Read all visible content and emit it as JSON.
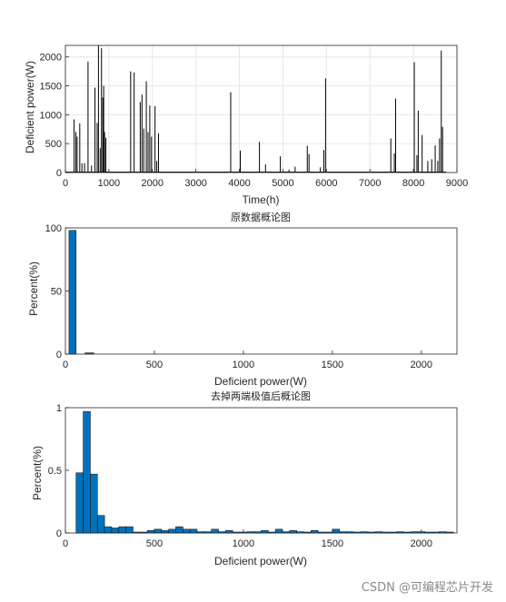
{
  "watermark": "CSDN @可编程芯片开发",
  "chart_data": [
    {
      "type": "line",
      "title": "",
      "xlabel": "Time(h)",
      "ylabel": "Deficient power(W)",
      "xlim": [
        0,
        9000
      ],
      "ylim": [
        0,
        2200
      ],
      "xticks": [
        0,
        1000,
        2000,
        3000,
        4000,
        5000,
        6000,
        7000,
        8000,
        9000
      ],
      "yticks": [
        0,
        500,
        1000,
        1500,
        2000
      ],
      "grid": true,
      "color": "#000000",
      "spikes": [
        {
          "x": 200,
          "y": 920
        },
        {
          "x": 240,
          "y": 700
        },
        {
          "x": 270,
          "y": 620
        },
        {
          "x": 330,
          "y": 850
        },
        {
          "x": 380,
          "y": 160
        },
        {
          "x": 440,
          "y": 160
        },
        {
          "x": 520,
          "y": 1920
        },
        {
          "x": 600,
          "y": 120
        },
        {
          "x": 680,
          "y": 1470
        },
        {
          "x": 730,
          "y": 860
        },
        {
          "x": 760,
          "y": 2200
        },
        {
          "x": 800,
          "y": 420
        },
        {
          "x": 830,
          "y": 2150
        },
        {
          "x": 860,
          "y": 1300
        },
        {
          "x": 880,
          "y": 1500
        },
        {
          "x": 900,
          "y": 700
        },
        {
          "x": 930,
          "y": 600
        },
        {
          "x": 1500,
          "y": 1750
        },
        {
          "x": 1580,
          "y": 1730
        },
        {
          "x": 1720,
          "y": 1220
        },
        {
          "x": 1760,
          "y": 1350
        },
        {
          "x": 1800,
          "y": 760
        },
        {
          "x": 1860,
          "y": 1580
        },
        {
          "x": 1900,
          "y": 700
        },
        {
          "x": 1940,
          "y": 1160
        },
        {
          "x": 1980,
          "y": 620
        },
        {
          "x": 2060,
          "y": 1150
        },
        {
          "x": 2100,
          "y": 200
        },
        {
          "x": 2140,
          "y": 680
        },
        {
          "x": 3800,
          "y": 1390
        },
        {
          "x": 4020,
          "y": 380
        },
        {
          "x": 4460,
          "y": 530
        },
        {
          "x": 4600,
          "y": 140
        },
        {
          "x": 4940,
          "y": 280
        },
        {
          "x": 5140,
          "y": 50
        },
        {
          "x": 5280,
          "y": 100
        },
        {
          "x": 5560,
          "y": 460
        },
        {
          "x": 5600,
          "y": 320
        },
        {
          "x": 5860,
          "y": 90
        },
        {
          "x": 5940,
          "y": 390
        },
        {
          "x": 5980,
          "y": 1630
        },
        {
          "x": 7480,
          "y": 590
        },
        {
          "x": 7560,
          "y": 330
        },
        {
          "x": 7590,
          "y": 1280
        },
        {
          "x": 8020,
          "y": 1910
        },
        {
          "x": 8080,
          "y": 300
        },
        {
          "x": 8110,
          "y": 1070
        },
        {
          "x": 8200,
          "y": 650
        },
        {
          "x": 8330,
          "y": 200
        },
        {
          "x": 8420,
          "y": 230
        },
        {
          "x": 8500,
          "y": 470
        },
        {
          "x": 8560,
          "y": 200
        },
        {
          "x": 8600,
          "y": 590
        },
        {
          "x": 8640,
          "y": 2110
        },
        {
          "x": 8670,
          "y": 790
        }
      ]
    },
    {
      "type": "bar",
      "title": "原数据概论图",
      "xlabel": "Deficient power(W)",
      "ylabel": "Percent(%)",
      "xlim": [
        0,
        2200
      ],
      "ylim": [
        0,
        100
      ],
      "xticks": [
        0,
        500,
        1000,
        1500,
        2000
      ],
      "yticks": [
        0,
        50,
        100
      ],
      "color": "#0072bd",
      "bin_edges": [
        20,
        60,
        110,
        160
      ],
      "values": [
        98,
        0,
        1
      ]
    },
    {
      "type": "bar",
      "title": "去掉两端极值后概论图",
      "xlabel": "Deficient power(W)",
      "ylabel": "Percent(%)",
      "xlim": [
        0,
        2200
      ],
      "ylim": [
        0,
        1
      ],
      "xticks": [
        0,
        500,
        1000,
        1500,
        2000
      ],
      "yticks": [
        0,
        0.5,
        1
      ],
      "color": "#0072bd",
      "bin_start": 60,
      "bin_width": 40,
      "values": [
        0.48,
        0.97,
        0.47,
        0.14,
        0.05,
        0.04,
        0.05,
        0.05,
        0.0,
        0.0,
        0.02,
        0.03,
        0.02,
        0.03,
        0.05,
        0.03,
        0.03,
        0.01,
        0.01,
        0.03,
        0.01,
        0.02,
        0.0,
        0.0,
        0.01,
        0.01,
        0.02,
        0.0,
        0.03,
        0.01,
        0.02,
        0.01,
        0.0,
        0.02,
        0.0,
        0.0,
        0.03,
        0.01,
        0.01,
        0.0,
        0.01,
        0.0,
        0.01,
        0.0,
        0.0,
        0.01,
        0.0,
        0.01,
        0.01,
        0.0,
        0.0,
        0.01,
        0.0
      ]
    }
  ]
}
